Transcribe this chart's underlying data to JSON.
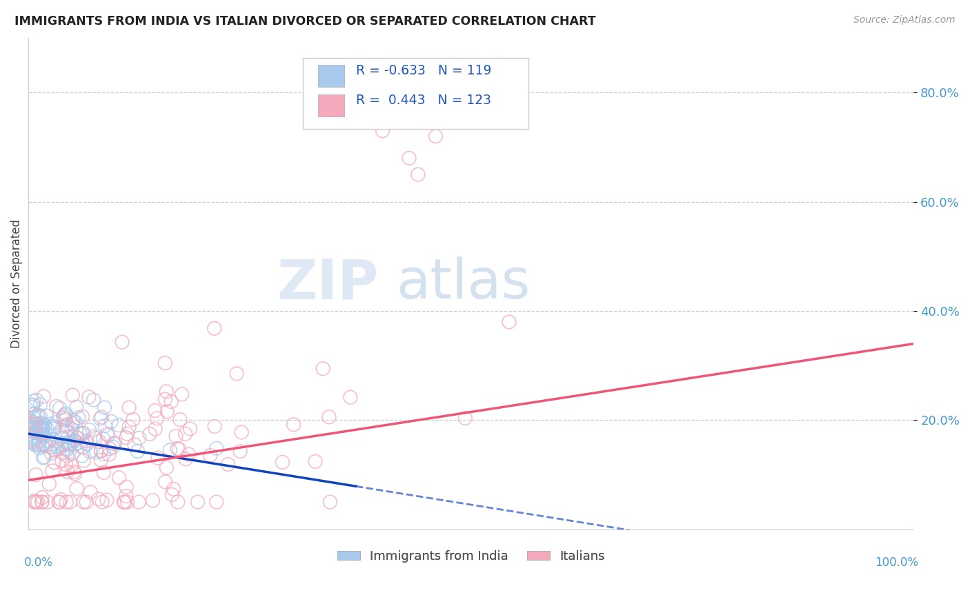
{
  "title": "IMMIGRANTS FROM INDIA VS ITALIAN DIVORCED OR SEPARATED CORRELATION CHART",
  "source": "Source: ZipAtlas.com",
  "ylabel": "Divorced or Separated",
  "legend_label1": "Immigrants from India",
  "legend_label2": "Italians",
  "color_blue": "#A8C8EC",
  "color_pink": "#F4AABC",
  "color_blue_line": "#1144BB",
  "color_pink_line": "#EE5577",
  "background_color": "#FFFFFF",
  "grid_color": "#CCCCCC",
  "xlim": [
    0.0,
    1.0
  ],
  "ylim": [
    0.0,
    0.9
  ],
  "y_ticks": [
    0.2,
    0.4,
    0.6,
    0.8
  ],
  "y_tick_labels": [
    "20.0%",
    "40.0%",
    "60.0%",
    "80.0%"
  ]
}
